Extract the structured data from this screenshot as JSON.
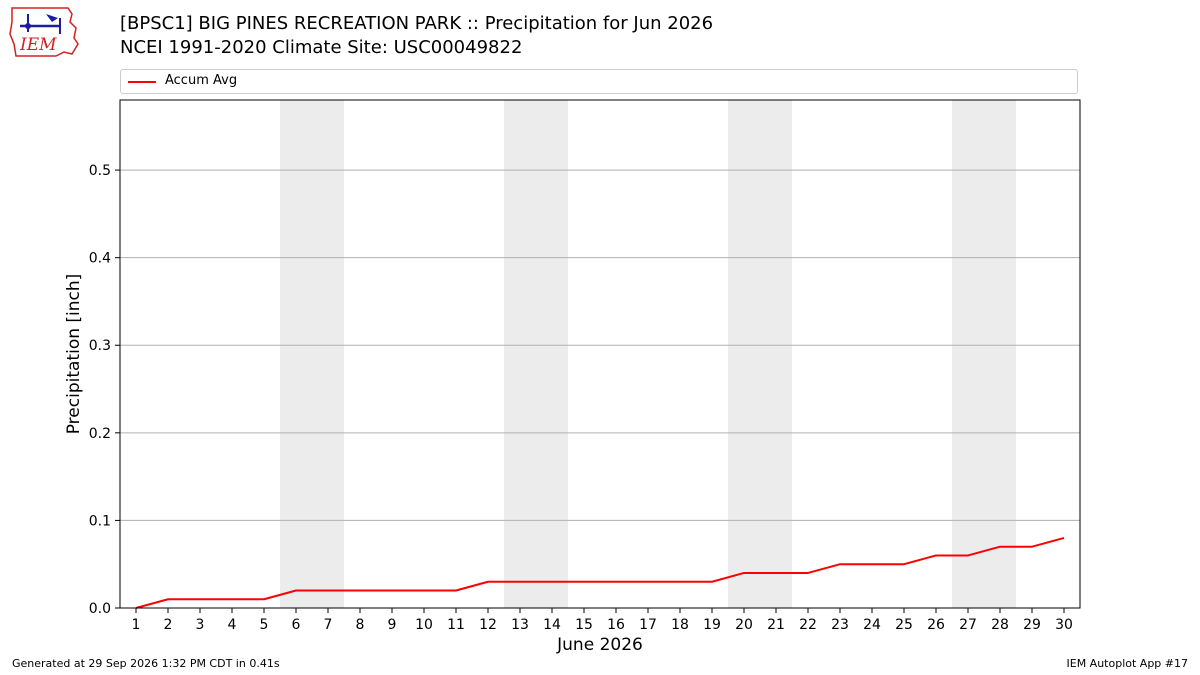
{
  "header": {
    "title_line1": "[BPSC1] BIG PINES RECREATION PARK :: Precipitation for Jun 2026",
    "title_line2": "NCEI 1991-2020 Climate Site: USC00049822",
    "logo_text": "IEM"
  },
  "footer": {
    "generated": "Generated at 29 Sep 2026 1:32 PM CDT in 0.41s",
    "app": "IEM Autoplot App #17"
  },
  "colors": {
    "series": "#ff0000",
    "weekend_shade": "#ececec",
    "grid": "#b0b0b0",
    "logo_red": "#d42020",
    "logo_blue": "#1c1c9c"
  },
  "chart_data": {
    "type": "line",
    "xlabel": "June 2026",
    "ylabel": "Precipitation [inch]",
    "xlim": [
      0.5,
      30.5
    ],
    "ylim": [
      0,
      0.58
    ],
    "y_ticks": [
      "0.0",
      "0.1",
      "0.2",
      "0.3",
      "0.4",
      "0.5"
    ],
    "x": [
      1,
      2,
      3,
      4,
      5,
      6,
      7,
      8,
      9,
      10,
      11,
      12,
      13,
      14,
      15,
      16,
      17,
      18,
      19,
      20,
      21,
      22,
      23,
      24,
      25,
      26,
      27,
      28,
      29,
      30
    ],
    "series": [
      {
        "name": "Accum Avg",
        "values": [
          0.0,
          0.01,
          0.01,
          0.01,
          0.01,
          0.02,
          0.02,
          0.02,
          0.02,
          0.02,
          0.02,
          0.03,
          0.03,
          0.03,
          0.03,
          0.03,
          0.03,
          0.03,
          0.03,
          0.04,
          0.04,
          0.04,
          0.05,
          0.05,
          0.05,
          0.06,
          0.06,
          0.07,
          0.07,
          0.08
        ]
      }
    ],
    "weekend_shading": [
      [
        6,
        7
      ],
      [
        13,
        14
      ],
      [
        20,
        21
      ],
      [
        27,
        28
      ]
    ],
    "grid": "horizontal",
    "legend_position": "top"
  }
}
